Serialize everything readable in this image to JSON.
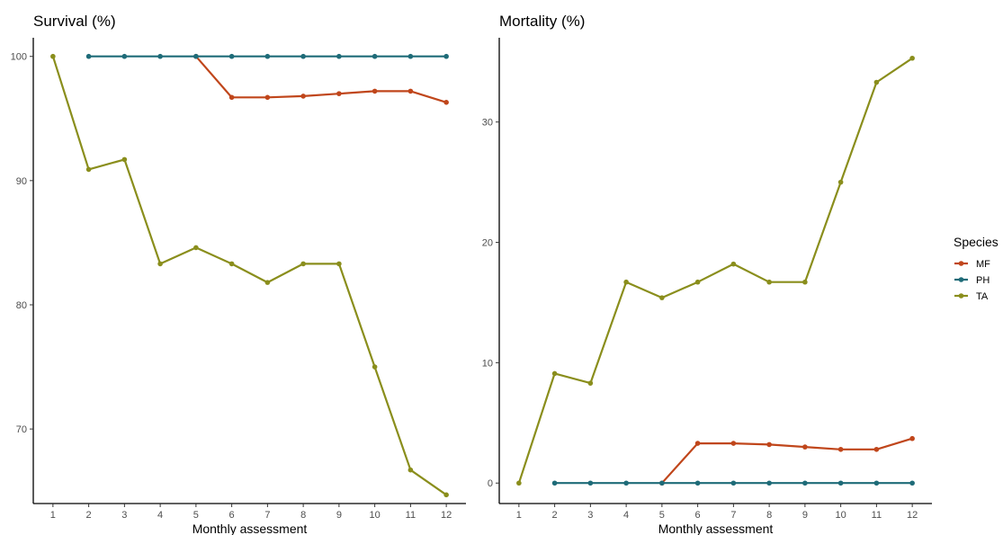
{
  "chart_data": [
    {
      "type": "line",
      "title": "Survival (%)",
      "xlabel": "Monthly assessment",
      "ylabel": "",
      "x": [
        1,
        2,
        3,
        4,
        5,
        6,
        7,
        8,
        9,
        10,
        11,
        12
      ],
      "x_ticks": [
        "1",
        "2",
        "3",
        "4",
        "5",
        "6",
        "7",
        "8",
        "9",
        "10",
        "11",
        "12"
      ],
      "ylim": [
        64,
        101.5
      ],
      "y_ticks": [
        "70",
        "80",
        "90",
        "100"
      ],
      "grid": false,
      "series": [
        {
          "name": "MF",
          "color": "#C0461B",
          "x": [
            5,
            6,
            7,
            8,
            9,
            10,
            11,
            12
          ],
          "values": [
            100,
            96.7,
            96.7,
            96.8,
            97.0,
            97.2,
            97.2,
            96.3
          ]
        },
        {
          "name": "PH",
          "color": "#1E6B78",
          "x": [
            2,
            3,
            4,
            5,
            6,
            7,
            8,
            9,
            10,
            11,
            12
          ],
          "values": [
            100,
            100,
            100,
            100,
            100,
            100,
            100,
            100,
            100,
            100,
            100
          ]
        },
        {
          "name": "TA",
          "color": "#8A8E1C",
          "x": [
            1,
            2,
            3,
            4,
            5,
            6,
            7,
            8,
            9,
            10,
            11,
            12
          ],
          "values": [
            100,
            90.9,
            91.7,
            83.3,
            84.6,
            83.3,
            81.8,
            83.3,
            83.3,
            75.0,
            66.7,
            64.7
          ]
        }
      ]
    },
    {
      "type": "line",
      "title": "Mortality (%)",
      "xlabel": "Monthly assessment",
      "ylabel": "",
      "x": [
        1,
        2,
        3,
        4,
        5,
        6,
        7,
        8,
        9,
        10,
        11,
        12
      ],
      "x_ticks": [
        "1",
        "2",
        "3",
        "4",
        "5",
        "6",
        "7",
        "8",
        "9",
        "10",
        "11",
        "12"
      ],
      "ylim": [
        -1.7,
        37
      ],
      "y_ticks": [
        "0",
        "10",
        "20",
        "30"
      ],
      "grid": false,
      "series": [
        {
          "name": "MF",
          "color": "#C0461B",
          "x": [
            5,
            6,
            7,
            8,
            9,
            10,
            11,
            12
          ],
          "values": [
            0,
            3.3,
            3.3,
            3.2,
            3.0,
            2.8,
            2.8,
            3.7
          ]
        },
        {
          "name": "PH",
          "color": "#1E6B78",
          "x": [
            2,
            3,
            4,
            5,
            6,
            7,
            8,
            9,
            10,
            11,
            12
          ],
          "values": [
            0,
            0,
            0,
            0,
            0,
            0,
            0,
            0,
            0,
            0,
            0
          ]
        },
        {
          "name": "TA",
          "color": "#8A8E1C",
          "x": [
            1,
            2,
            3,
            4,
            5,
            6,
            7,
            8,
            9,
            10,
            11,
            12
          ],
          "values": [
            0,
            9.1,
            8.3,
            16.7,
            15.4,
            16.7,
            18.2,
            16.7,
            16.7,
            25.0,
            33.3,
            35.3
          ]
        }
      ]
    }
  ],
  "legend": {
    "title": "Species",
    "placement": "right",
    "items": [
      {
        "label": "MF",
        "color": "#C0461B"
      },
      {
        "label": "PH",
        "color": "#1E6B78"
      },
      {
        "label": "TA",
        "color": "#8A8E1C"
      }
    ]
  }
}
